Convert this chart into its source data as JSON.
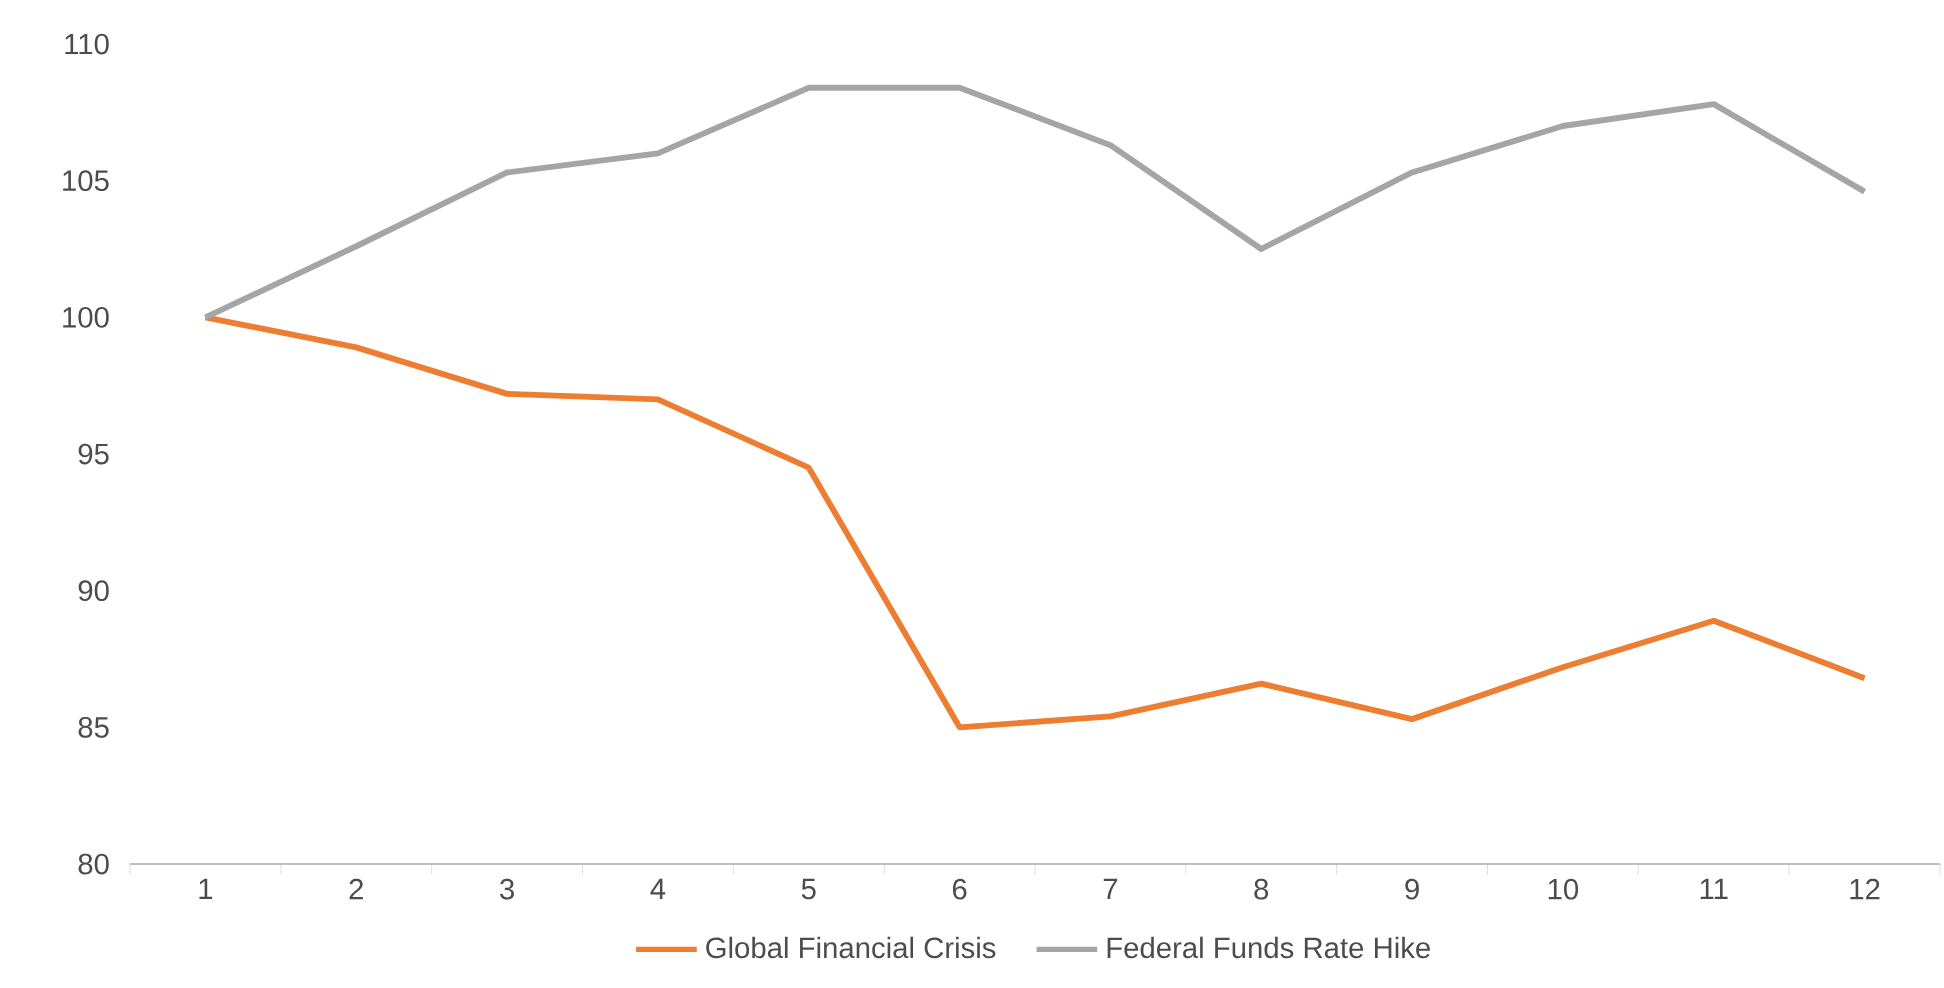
{
  "chart_data": {
    "type": "line",
    "categories": [
      "1",
      "2",
      "3",
      "4",
      "5",
      "6",
      "7",
      "8",
      "9",
      "10",
      "11",
      "12"
    ],
    "series": [
      {
        "name": "Global Financial Crisis",
        "color": "#ed7d31",
        "values": [
          100,
          98.9,
          97.2,
          97.0,
          94.5,
          85.0,
          85.4,
          86.6,
          85.3,
          87.2,
          88.9,
          86.8
        ]
      },
      {
        "name": "Federal Funds Rate Hike",
        "color": "#a5a5a5",
        "values": [
          100,
          102.6,
          105.3,
          106.0,
          108.4,
          108.4,
          106.3,
          102.5,
          105.3,
          107.0,
          107.8,
          104.6
        ]
      }
    ],
    "ylim": [
      80,
      110
    ],
    "yticks": [
      80,
      85,
      90,
      95,
      100,
      105,
      110
    ],
    "legend": "bottom",
    "marker": "none",
    "line_style": "solid"
  }
}
